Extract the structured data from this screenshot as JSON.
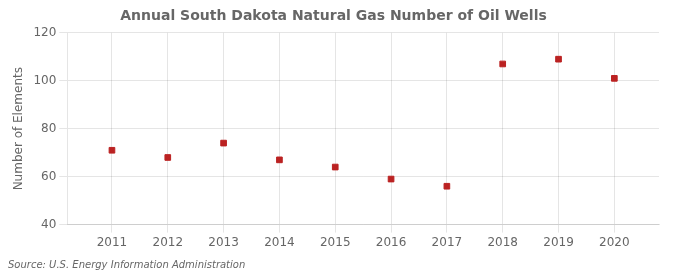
{
  "chart_data": {
    "type": "scatter",
    "title": "Annual South Dakota Natural Gas Number of Oil Wells",
    "ylabel": "Number of Elements",
    "annotation": "Source: U.S. Energy Information Administration",
    "x": [
      2011,
      2012,
      2013,
      2014,
      2015,
      2016,
      2017,
      2018,
      2019,
      2020
    ],
    "values": [
      71,
      68,
      74,
      67,
      64,
      59,
      56,
      107,
      109,
      101
    ],
    "color": "#bb2222",
    "marker": "square",
    "xlim": [
      2010.2,
      2020.8
    ],
    "xticks": [
      2011,
      2012,
      2013,
      2014,
      2015,
      2016,
      2017,
      2018,
      2019,
      2020
    ],
    "ylim": [
      40,
      120
    ],
    "yticks": [
      40,
      60,
      80,
      100,
      120
    ],
    "grid": true,
    "legend": false
  }
}
